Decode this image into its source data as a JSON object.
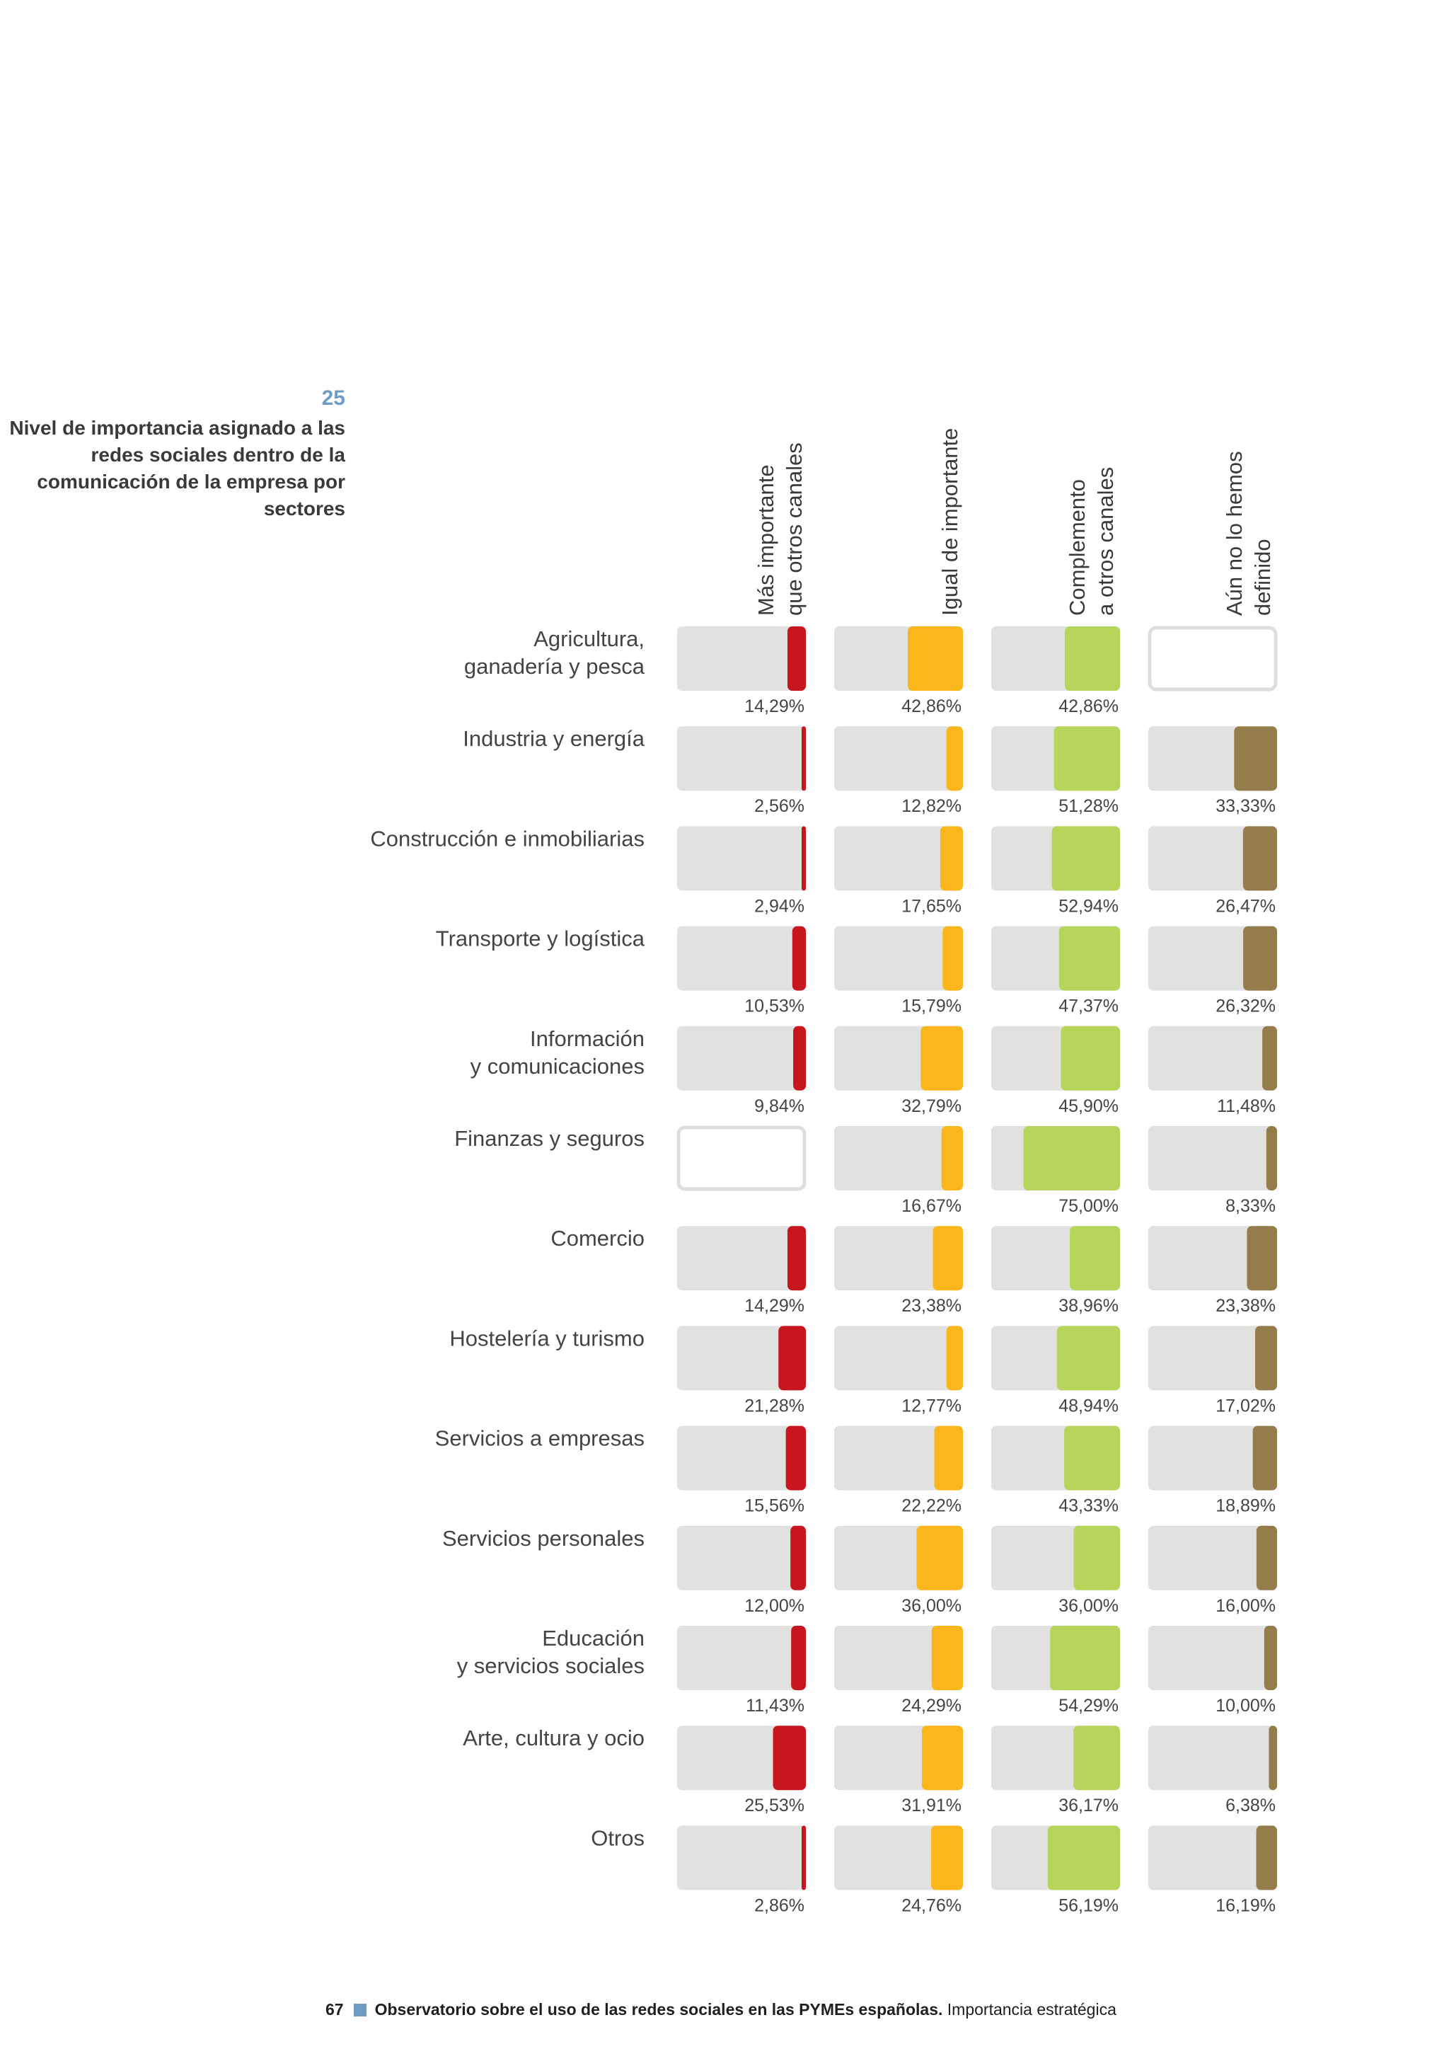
{
  "figure": {
    "number": "25",
    "title": "Nivel de importancia asignado a las redes sociales dentro de la comunicación de la empresa por sectores"
  },
  "footer": {
    "page": "67",
    "publication": "Observatorio sobre el uso de las redes sociales en las PYMEs españolas.",
    "section": "Importancia estratégica"
  },
  "colors": {
    "track": "#e1e1df",
    "empty_border": "#dededd",
    "accent": "#6f9cc6"
  },
  "chart_data": {
    "type": "bar",
    "orientation": "horizontal",
    "layout": "small multiples per sector (rows) and importance level (columns)",
    "ylim": [
      0,
      100
    ],
    "units": "%",
    "categories": [
      "Agricultura,\nganadería y pesca",
      "Industria y energía",
      "Construcción e inmobiliarias",
      "Transporte y logística",
      "Información\ny comunicaciones",
      "Finanzas y seguros",
      "Comercio",
      "Hostelería y turismo",
      "Servicios a empresas",
      "Servicios personales",
      "Educación\ny servicios sociales",
      "Arte, cultura y ocio",
      "Otros"
    ],
    "series": [
      {
        "name": "Más importante\nque otros canales",
        "color": "#c8161e",
        "values": [
          14.29,
          2.56,
          2.94,
          10.53,
          9.84,
          null,
          14.29,
          21.28,
          15.56,
          12.0,
          11.43,
          25.53,
          2.86
        ],
        "labels": [
          "14,29%",
          "2,56%",
          "2,94%",
          "10,53%",
          "9,84%",
          "",
          "14,29%",
          "21,28%",
          "15,56%",
          "12,00%",
          "11,43%",
          "25,53%",
          "2,86%"
        ]
      },
      {
        "name": "Igual de importante",
        "color": "#fbb61c",
        "values": [
          42.86,
          12.82,
          17.65,
          15.79,
          32.79,
          16.67,
          23.38,
          12.77,
          22.22,
          36.0,
          24.29,
          31.91,
          24.76
        ],
        "labels": [
          "42,86%",
          "12,82%",
          "17,65%",
          "15,79%",
          "32,79%",
          "16,67%",
          "23,38%",
          "12,77%",
          "22,22%",
          "36,00%",
          "24,29%",
          "31,91%",
          "24,76%"
        ]
      },
      {
        "name": "Complemento\na otros canales",
        "color": "#b6d55a",
        "values": [
          42.86,
          51.28,
          52.94,
          47.37,
          45.9,
          75.0,
          38.96,
          48.94,
          43.33,
          36.0,
          54.29,
          36.17,
          56.19
        ],
        "labels": [
          "42,86%",
          "51,28%",
          "52,94%",
          "47,37%",
          "45,90%",
          "75,00%",
          "38,96%",
          "48,94%",
          "43,33%",
          "36,00%",
          "54,29%",
          "36,17%",
          "56,19%"
        ]
      },
      {
        "name": "Aún no lo hemos\ndefinido",
        "color": "#947d4a",
        "values": [
          null,
          33.33,
          26.47,
          26.32,
          11.48,
          8.33,
          23.38,
          17.02,
          18.89,
          16.0,
          10.0,
          6.38,
          16.19
        ],
        "labels": [
          "",
          "33,33%",
          "26,47%",
          "26,32%",
          "11,48%",
          "8,33%",
          "23,38%",
          "17,02%",
          "18,89%",
          "16,00%",
          "10,00%",
          "6,38%",
          "16,19%"
        ]
      }
    ]
  }
}
